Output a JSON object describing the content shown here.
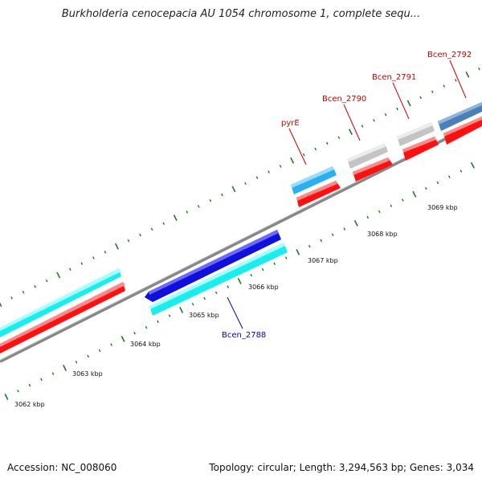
{
  "title": "Burkholderia cenocepacia AU 1054 chromosome 1, complete sequ...",
  "accession": "Accession: NC_008060",
  "summary": "Topology: circular; Length: 3,294,563 bp; Genes: 3,034",
  "scale": {
    "unit": "kbp",
    "labels": [
      "3062 kbp",
      "3063 kbp",
      "3064 kbp",
      "3065 kbp",
      "3066 kbp",
      "3067 kbp",
      "3068 kbp",
      "3069 kbp"
    ]
  },
  "gene_labels": [
    {
      "text": "Bcen_2788",
      "color": "#0000cc"
    },
    {
      "text": "pyrE",
      "color": "#cc0000"
    },
    {
      "text": "Bcen_2790",
      "color": "#cc0000"
    },
    {
      "text": "Bcen_2791",
      "color": "#cc0000"
    },
    {
      "text": "Bcen_2792",
      "color": "#cc0000"
    }
  ],
  "colors": {
    "backbone": "#8a8a8a",
    "cds": "#ff1010",
    "gene_cyan": "#17f0f0",
    "gene_blue": "#1010dd",
    "gene_lightblue": "#2ab0f0",
    "gene_gray": "#c4c4c4",
    "gene_steel": "#4a80b8",
    "ticks": "#1f7a1f"
  }
}
